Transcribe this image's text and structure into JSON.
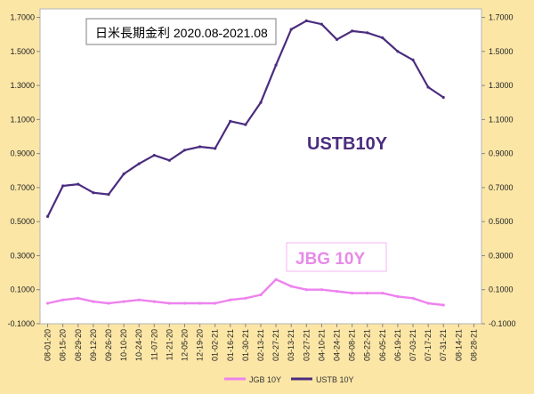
{
  "chart_data": {
    "type": "line",
    "title": "日米長期金利 2020.08-2021.08",
    "annotations": {
      "ustb_label": "USTB10Y",
      "jgb_label": "JBG 10Y"
    },
    "y_ticks": [
      "1.7000",
      "1.5000",
      "1.3000",
      "1.1000",
      "0.9000",
      "0.7000",
      "0.5000",
      "0.3000",
      "0.1000",
      "-0.1000"
    ],
    "y_tick_values": [
      1.7,
      1.5,
      1.3,
      1.1,
      0.9,
      0.7,
      0.5,
      0.3,
      0.1,
      -0.1
    ],
    "y2_ticks": [
      "1.7000",
      "1.5000",
      "1.3000",
      "1.1000",
      "0.9000",
      "0.7000",
      "0.5000",
      "0.3000",
      "0.1000",
      "-0.1000"
    ],
    "ylim": [
      -0.1,
      1.75
    ],
    "x_ticks": [
      "08-01-20",
      "08-15-20",
      "08-29-20",
      "09-12-20",
      "09-26-20",
      "10-10-20",
      "10-24-20",
      "11-07-20",
      "11-21-20",
      "12-05-20",
      "12-19-20",
      "01-02-21",
      "01-16-21",
      "01-30-21",
      "02-13-21",
      "02-27-21",
      "03-13-21",
      "03-27-21",
      "04-10-21",
      "04-24-21",
      "05-08-21",
      "05-22-21",
      "06-05-21",
      "06-19-21",
      "07-03-21",
      "07-17-21",
      "07-31-21",
      "08-14-21",
      "08-28-21"
    ],
    "legend_position": "bottom",
    "grid": false,
    "colors": {
      "jgb": "#ee82ee",
      "ustb": "#4b2c7f",
      "background": "#fbe6a6",
      "plot": "#ffffff"
    },
    "series": [
      {
        "name": "JGB 10Y",
        "x": [
          "08-01-20",
          "08-15-20",
          "08-29-20",
          "09-12-20",
          "09-26-20",
          "10-10-20",
          "10-24-20",
          "11-07-20",
          "11-21-20",
          "12-05-20",
          "12-19-20",
          "01-02-21",
          "01-16-21",
          "01-30-21",
          "02-13-21",
          "02-27-21",
          "03-13-21",
          "03-27-21",
          "04-10-21",
          "04-24-21",
          "05-08-21",
          "05-22-21",
          "06-05-21",
          "06-19-21",
          "07-03-21",
          "07-17-21",
          "07-31-21"
        ],
        "values": [
          0.02,
          0.04,
          0.05,
          0.03,
          0.02,
          0.03,
          0.04,
          0.03,
          0.02,
          0.02,
          0.02,
          0.02,
          0.04,
          0.05,
          0.07,
          0.16,
          0.12,
          0.1,
          0.1,
          0.09,
          0.08,
          0.08,
          0.08,
          0.06,
          0.05,
          0.02,
          0.01
        ]
      },
      {
        "name": "USTB 10Y",
        "x": [
          "08-01-20",
          "08-15-20",
          "08-29-20",
          "09-12-20",
          "09-26-20",
          "10-10-20",
          "10-24-20",
          "11-07-20",
          "11-21-20",
          "12-05-20",
          "12-19-20",
          "01-02-21",
          "01-16-21",
          "01-30-21",
          "02-13-21",
          "02-27-21",
          "03-13-21",
          "03-27-21",
          "04-10-21",
          "04-24-21",
          "05-08-21",
          "05-22-21",
          "06-05-21",
          "06-19-21",
          "07-03-21",
          "07-17-21",
          "07-31-21"
        ],
        "values": [
          0.53,
          0.71,
          0.72,
          0.67,
          0.66,
          0.78,
          0.84,
          0.89,
          0.86,
          0.92,
          0.94,
          0.93,
          1.09,
          1.07,
          1.2,
          1.42,
          1.63,
          1.68,
          1.66,
          1.57,
          1.62,
          1.61,
          1.58,
          1.5,
          1.45,
          1.29,
          1.23
        ]
      }
    ]
  }
}
